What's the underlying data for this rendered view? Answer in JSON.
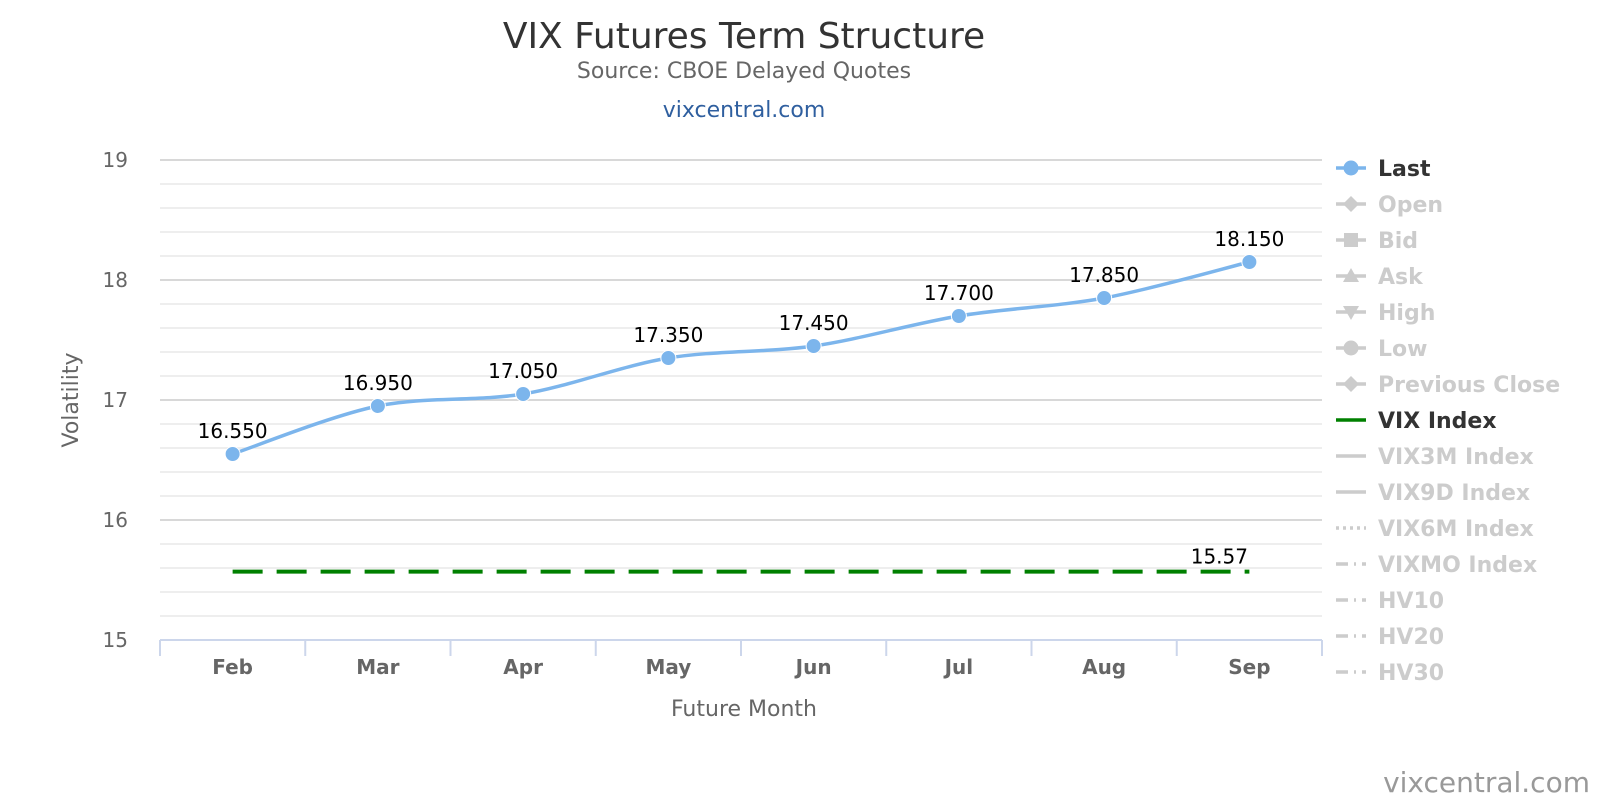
{
  "chart_data": {
    "type": "line",
    "title": "VIX Futures Term Structure",
    "subtitle": "Source: CBOE Delayed Quotes",
    "link": "vixcentral.com",
    "xlabel": "Future Month",
    "ylabel": "Volatility",
    "ylim": [
      15,
      19
    ],
    "yticks": [
      15,
      16,
      17,
      18,
      19
    ],
    "categories": [
      "Feb",
      "Mar",
      "Apr",
      "May",
      "Jun",
      "Jul",
      "Aug",
      "Sep"
    ],
    "series": [
      {
        "name": "Last",
        "values": [
          16.55,
          16.95,
          17.05,
          17.35,
          17.45,
          17.7,
          17.85,
          18.15
        ],
        "labels": [
          "16.550",
          "16.950",
          "17.050",
          "17.350",
          "17.450",
          "17.700",
          "17.850",
          "18.150"
        ],
        "color": "#7cb5ec"
      },
      {
        "name": "VIX Index",
        "value": 15.57,
        "label": "15.57",
        "color": "#008000",
        "style": "dashed"
      }
    ],
    "legend": {
      "placement": "right",
      "items": [
        {
          "name": "Last",
          "active": true,
          "marker": "circle",
          "line": "solid"
        },
        {
          "name": "Open",
          "active": false,
          "marker": "diamond",
          "line": "solid"
        },
        {
          "name": "Bid",
          "active": false,
          "marker": "square",
          "line": "solid"
        },
        {
          "name": "Ask",
          "active": false,
          "marker": "triangle",
          "line": "solid"
        },
        {
          "name": "High",
          "active": false,
          "marker": "triangle-down",
          "line": "solid"
        },
        {
          "name": "Low",
          "active": false,
          "marker": "circle",
          "line": "solid"
        },
        {
          "name": "Previous Close",
          "active": false,
          "marker": "diamond",
          "line": "solid"
        },
        {
          "name": "VIX Index",
          "active": true,
          "marker": "none",
          "line": "solid",
          "color": "#008000"
        },
        {
          "name": "VIX3M Index",
          "active": false,
          "marker": "none",
          "line": "solid"
        },
        {
          "name": "VIX9D Index",
          "active": false,
          "marker": "none",
          "line": "solid"
        },
        {
          "name": "VIX6M Index",
          "active": false,
          "marker": "none",
          "line": "dotted"
        },
        {
          "name": "VIXMO Index",
          "active": false,
          "marker": "none",
          "line": "dashdot"
        },
        {
          "name": "HV10",
          "active": false,
          "marker": "none",
          "line": "dashdot"
        },
        {
          "name": "HV20",
          "active": false,
          "marker": "none",
          "line": "dashdot"
        },
        {
          "name": "HV30",
          "active": false,
          "marker": "none",
          "line": "dashdot"
        }
      ],
      "active_color": "#333333",
      "inactive_color": "#cccccc"
    },
    "grid": true,
    "credit": "vixcentral.com"
  }
}
